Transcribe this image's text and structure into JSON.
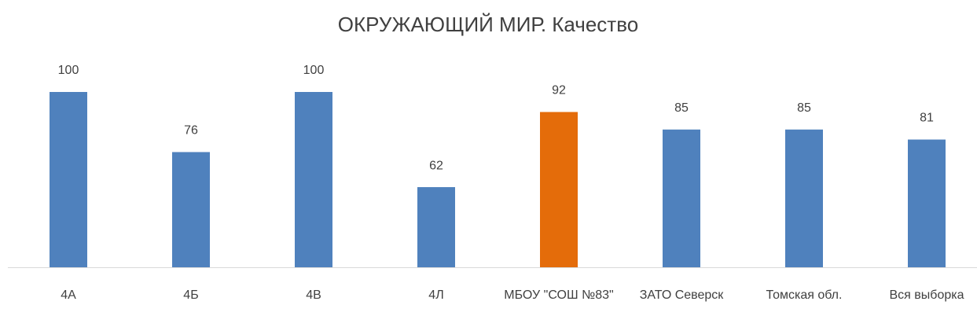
{
  "chart_data": {
    "type": "bar",
    "title": "ОКРУЖАЮЩИЙ МИР. Качество",
    "categories": [
      "4А",
      "4Б",
      "4В",
      "4Л",
      "МБОУ \"СОШ №83\"",
      "ЗАТО Северск",
      "Томская обл.",
      "Вся выборка"
    ],
    "values": [
      100,
      76,
      100,
      62,
      92,
      85,
      85,
      81
    ],
    "colors": [
      "#4f81bd",
      "#4f81bd",
      "#4f81bd",
      "#4f81bd",
      "#e46c0a",
      "#4f81bd",
      "#4f81bd",
      "#4f81bd"
    ],
    "ylim": [
      30,
      100
    ]
  }
}
